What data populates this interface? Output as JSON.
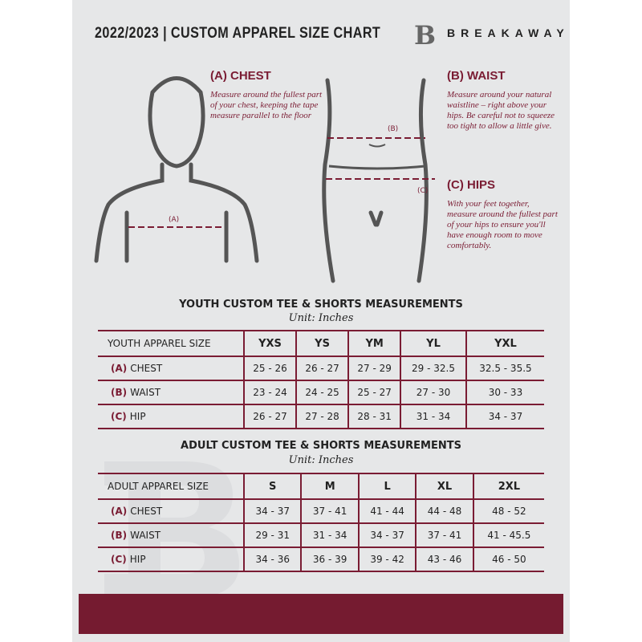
{
  "header": {
    "title": "2022/2023  |  CUSTOM APPAREL SIZE CHART",
    "brand": "BREAKAWAY",
    "logo_letter": "B"
  },
  "colors": {
    "accent": "#7a1c33",
    "background": "#e6e7e8"
  },
  "chest": {
    "heading": "(A) CHEST",
    "desc": "Measure around the fullest part of your chest, keeping the tape measure parallel to the floor",
    "marker": "(A)"
  },
  "waist": {
    "heading": "(B) WAIST",
    "desc": "Measure around your natural waistline – right above your hips. Be careful not to squeeze too tight to allow a little give.",
    "marker": "(B)"
  },
  "hips": {
    "heading": "(C) HIPS",
    "desc": "With your feet together, measure around the fullest part of your hips to ensure you'll have enough room to move comfortably.",
    "marker": "(C)"
  },
  "youth": {
    "title": "YOUTH CUSTOM TEE & SHORTS MEASUREMENTS",
    "unit": "Unit: Inches",
    "header": [
      "YOUTH APPAREL SIZE",
      "YXS",
      "YS",
      "YM",
      "YL",
      "YXL"
    ],
    "rows": [
      {
        "code": "(A)",
        "name": "CHEST",
        "values": [
          "25 - 26",
          "26 - 27",
          "27 - 29",
          "29 - 32.5",
          "32.5 - 35.5"
        ]
      },
      {
        "code": "(B)",
        "name": "WAIST",
        "values": [
          "23 - 24",
          "24 - 25",
          "25 - 27",
          "27 - 30",
          "30 - 33"
        ]
      },
      {
        "code": "(C)",
        "name": "HIP",
        "values": [
          "26 - 27",
          "27 - 28",
          "28 - 31",
          "31 - 34",
          "34 - 37"
        ]
      }
    ]
  },
  "adult": {
    "title": "ADULT CUSTOM TEE & SHORTS MEASUREMENTS",
    "unit": "Unit: Inches",
    "header": [
      "ADULT APPAREL SIZE",
      "S",
      "M",
      "L",
      "XL",
      "2XL"
    ],
    "rows": [
      {
        "code": "(A)",
        "name": "CHEST",
        "values": [
          "34 - 37",
          "37 - 41",
          "41 - 44",
          "44 - 48",
          "48 - 52"
        ]
      },
      {
        "code": "(B)",
        "name": "WAIST",
        "values": [
          "29 - 31",
          "31 - 34",
          "34 - 37",
          "37 - 41",
          "41 - 45.5"
        ]
      },
      {
        "code": "(C)",
        "name": "HIP",
        "values": [
          "34 - 36",
          "36 - 39",
          "39 - 42",
          "43 - 46",
          "46 - 50"
        ]
      }
    ]
  }
}
